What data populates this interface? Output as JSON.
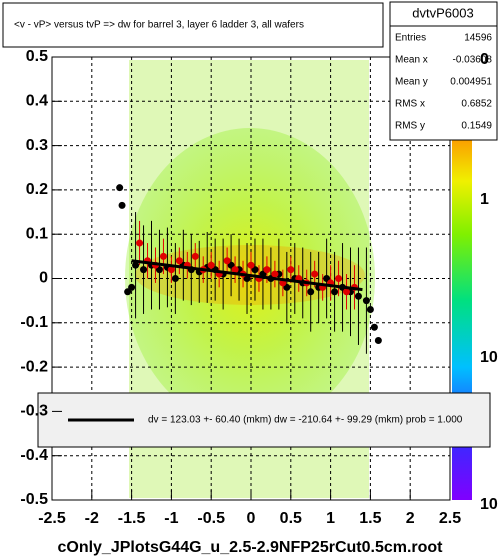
{
  "chart_data": {
    "type": "scatter",
    "title": "<v - vP>       versus  tvP => dw for barrel 3, layer 6 ladder 3, all wafers",
    "footer": "cOnly_JPlotsG44G_u_2.5-2.9NFP25rCut0.5cm.root",
    "xlim": [
      -2.5,
      2.5
    ],
    "xticks": [
      -2.5,
      -2,
      -1.5,
      -1,
      -0.5,
      0,
      0.5,
      1,
      1.5,
      2,
      2.5
    ],
    "ylim": [
      -0.5,
      0.5
    ],
    "yticks": [
      -0.5,
      -0.4,
      -0.3,
      -0.2,
      -0.1,
      0,
      0.1,
      0.2,
      0.3,
      0.4,
      0.5
    ],
    "grid": true,
    "z_labels": [
      "0",
      "1",
      "10",
      "10"
    ],
    "stats": {
      "name": "dvtvP6003",
      "rows": [
        [
          "Entries",
          "14596"
        ],
        [
          "Mean x",
          "-0.03608"
        ],
        [
          "Mean y",
          "0.004951"
        ],
        [
          "RMS x",
          "0.6852"
        ],
        [
          "RMS y",
          "0.1549"
        ]
      ]
    },
    "legend": "dv =  123.03 +- 60.40 (mkm) dw = -210.64 +- 99.29 (mkm) prob = 1.000",
    "fit": {
      "color": "#000000",
      "x": [
        -1.5,
        1.4
      ],
      "y": [
        0.04,
        -0.025
      ]
    },
    "series": [
      {
        "color": "#000000",
        "x": [
          -1.65,
          -1.62,
          -1.55,
          -1.5,
          -1.45,
          -1.35,
          -1.25,
          -1.15,
          -1.05,
          -0.95,
          -0.85,
          -0.75,
          -0.65,
          -0.55,
          -0.45,
          -0.35,
          -0.25,
          -0.15,
          -0.05,
          0.05,
          0.15,
          0.25,
          0.35,
          0.45,
          0.55,
          0.65,
          0.75,
          0.85,
          0.95,
          1.05,
          1.15,
          1.25,
          1.35,
          1.45,
          1.5,
          1.55,
          1.6
        ],
        "values": [
          0.205,
          0.165,
          -0.03,
          -0.02,
          0.03,
          0.02,
          0.03,
          0.02,
          0.025,
          0.0,
          0.03,
          0.02,
          0.015,
          0.025,
          0.02,
          0.01,
          0.03,
          0.02,
          0.0,
          0.02,
          0.01,
          0.0,
          0.01,
          -0.02,
          0.0,
          -0.01,
          -0.03,
          -0.02,
          0.0,
          -0.03,
          -0.02,
          -0.03,
          -0.04,
          -0.05,
          -0.07,
          -0.11,
          -0.14
        ],
        "errors": [
          0.0,
          0.0,
          0.0,
          0.0,
          0.12,
          0.1,
          0.1,
          0.09,
          0.09,
          0.08,
          0.08,
          0.08,
          0.07,
          0.08,
          0.07,
          0.08,
          0.07,
          0.07,
          0.08,
          0.07,
          0.08,
          0.07,
          0.08,
          0.08,
          0.08,
          0.08,
          0.09,
          0.08,
          0.09,
          0.09,
          0.1,
          0.1,
          0.11,
          0.12,
          0.0,
          0.0,
          0.0
        ]
      },
      {
        "color": "#e00000",
        "x": [
          -1.4,
          -1.3,
          -1.2,
          -1.1,
          -1.0,
          -0.9,
          -0.8,
          -0.7,
          -0.6,
          -0.5,
          -0.4,
          -0.3,
          -0.2,
          -0.1,
          0.0,
          0.1,
          0.2,
          0.3,
          0.4,
          0.5,
          0.6,
          0.7,
          0.8,
          0.9,
          1.0,
          1.1,
          1.2,
          1.3
        ],
        "values": [
          0.08,
          0.04,
          0.03,
          0.05,
          0.02,
          0.04,
          0.03,
          0.05,
          0.02,
          0.03,
          0.01,
          0.04,
          0.02,
          0.01,
          0.03,
          0.0,
          0.02,
          0.01,
          -0.01,
          0.02,
          0.0,
          -0.01,
          0.01,
          -0.02,
          -0.01,
          0.0,
          -0.03,
          -0.02
        ],
        "errors": [
          0.05,
          0.04,
          0.04,
          0.04,
          0.03,
          0.03,
          0.03,
          0.03,
          0.03,
          0.03,
          0.03,
          0.03,
          0.03,
          0.03,
          0.03,
          0.03,
          0.03,
          0.03,
          0.03,
          0.03,
          0.03,
          0.03,
          0.03,
          0.03,
          0.04,
          0.04,
          0.04,
          0.05
        ]
      }
    ]
  }
}
